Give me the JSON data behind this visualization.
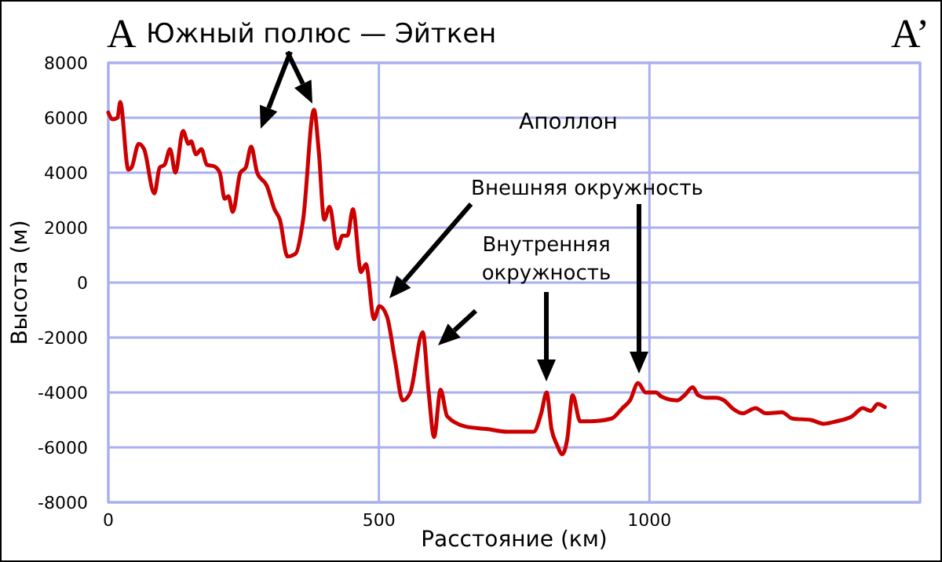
{
  "chart_data": {
    "type": "line",
    "xlabel": "Расстояние (км)",
    "ylabel": "Высота (м)",
    "annotations": [
      "A",
      "Южный полюс — Эйткен",
      "A’",
      "Аполлон",
      "Внешняя окружность",
      "Внутренняя окружность"
    ],
    "x": [
      0,
      8,
      17,
      22,
      37,
      43,
      56,
      66,
      85,
      95,
      104,
      114,
      124,
      138,
      148,
      153,
      162,
      172,
      182,
      196,
      206,
      215,
      222,
      230,
      244,
      254,
      264,
      275,
      293,
      307,
      317,
      331,
      346,
      360,
      380,
      389,
      399,
      409,
      423,
      433,
      442,
      452,
      467,
      476,
      491,
      501,
      515,
      530,
      544,
      558,
      581,
      592,
      602,
      614,
      626,
      660,
      699,
      737,
      786,
      800,
      810,
      819,
      829,
      839,
      848,
      858,
      872,
      891,
      930,
      950,
      964,
      979,
      993,
      1012,
      1022,
      1051,
      1065,
      1080,
      1090,
      1104,
      1123,
      1138,
      1153,
      1172,
      1196,
      1215,
      1245,
      1264,
      1298,
      1322,
      1346,
      1375,
      1394,
      1409,
      1422,
      1435
    ],
    "series": [
      {
        "color": "#cc0000",
        "values": [
          6190,
          5940,
          6000,
          6570,
          4110,
          4190,
          5050,
          4860,
          3240,
          4190,
          4290,
          4860,
          4000,
          5520,
          5050,
          5140,
          4670,
          4860,
          4290,
          4230,
          4000,
          3050,
          3140,
          2570,
          4000,
          4190,
          4950,
          4000,
          3520,
          2670,
          2290,
          950,
          1050,
          2290,
          6290,
          4760,
          2290,
          2760,
          1240,
          1710,
          1710,
          2670,
          380,
          670,
          -1330,
          -860,
          -1240,
          -2860,
          -4290,
          -4000,
          -1810,
          -4000,
          -5620,
          -3900,
          -4860,
          -5240,
          -5330,
          -5430,
          -5430,
          -4760,
          -4000,
          -5330,
          -5900,
          -6250,
          -5710,
          -4100,
          -5050,
          -5050,
          -4950,
          -4570,
          -4290,
          -3660,
          -4000,
          -4000,
          -4150,
          -4290,
          -4100,
          -3810,
          -4100,
          -4190,
          -4190,
          -4290,
          -4570,
          -4760,
          -4570,
          -4760,
          -4720,
          -4950,
          -5000,
          -5140,
          -5050,
          -4860,
          -4570,
          -4670,
          -4420,
          -4530
        ]
      }
    ],
    "xlim": [
      0,
      1500
    ],
    "xticks": [
      0,
      500,
      1000,
      {
        "value": 1500,
        "label": null
      }
    ],
    "ylim": [
      -8000,
      8000
    ],
    "yticks": [
      -8000,
      -6000,
      -4000,
      -2000,
      0,
      2000,
      4000,
      6000,
      8000
    ],
    "grid": true,
    "marker": "none",
    "line_style": "solid"
  }
}
